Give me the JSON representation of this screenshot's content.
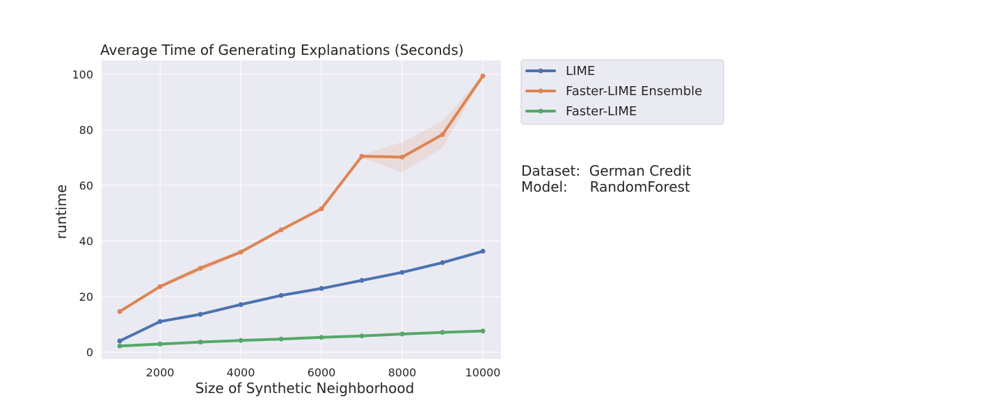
{
  "chart_data": {
    "type": "line",
    "title": "Average Time of Generating Explanations (Seconds)",
    "xlabel": "Size of Synthetic Neighborhood",
    "ylabel": "runtime",
    "xlim": [
      550,
      10450
    ],
    "ylim": [
      -2.5,
      105
    ],
    "xticks": [
      2000,
      4000,
      6000,
      8000,
      10000
    ],
    "yticks": [
      0,
      20,
      40,
      60,
      80,
      100
    ],
    "grid": true,
    "legend_position": "outside-top-right",
    "x": [
      1000,
      2000,
      3000,
      4000,
      5000,
      6000,
      7000,
      8000,
      9000,
      10000
    ],
    "series": [
      {
        "name": "LIME",
        "color": "#4c72b0",
        "values": [
          4.0,
          11.0,
          13.6,
          17.1,
          20.4,
          22.9,
          25.8,
          28.7,
          32.2,
          36.3
        ]
      },
      {
        "name": "Faster-LIME Ensemble",
        "color": "#dd8452",
        "values": [
          14.6,
          23.6,
          30.2,
          36.0,
          44.0,
          51.6,
          70.5,
          70.2,
          78.3,
          99.4
        ],
        "band_low": [
          14.0,
          23.0,
          29.0,
          35.3,
          43.4,
          51.0,
          70.0,
          64.7,
          73.5,
          99.0
        ],
        "band_high": [
          15.2,
          24.2,
          31.2,
          36.7,
          44.6,
          52.2,
          71.0,
          75.6,
          83.1,
          99.8
        ]
      },
      {
        "name": "Faster-LIME",
        "color": "#55a868",
        "values": [
          2.2,
          2.9,
          3.6,
          4.2,
          4.7,
          5.3,
          5.8,
          6.5,
          7.1,
          7.6
        ]
      }
    ],
    "annotation": {
      "line1": "Dataset:  German Credit",
      "line2": "Model:     RandomForest"
    }
  }
}
